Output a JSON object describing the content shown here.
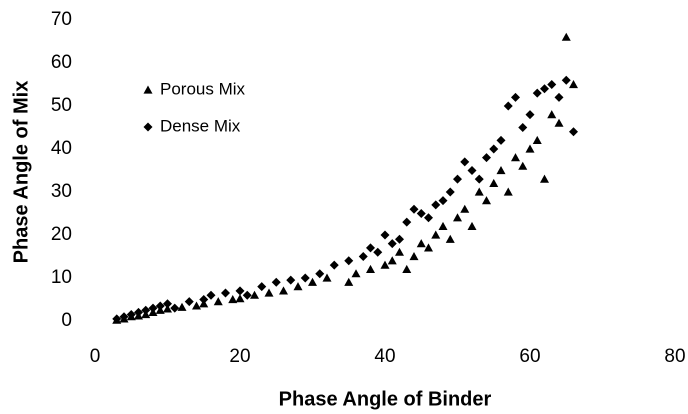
{
  "chart_data": {
    "type": "scatter",
    "xlabel": "Phase Angle of Binder",
    "ylabel": "Phase Angle of Mix",
    "xlim": [
      0,
      80
    ],
    "xticks": [
      0,
      20,
      40,
      60,
      80
    ],
    "ylim": [
      0,
      70
    ],
    "yticks": [
      0,
      10,
      20,
      30,
      40,
      50,
      60,
      70
    ],
    "grid": false,
    "legend": "upper left",
    "series": [
      {
        "name": "Porous Mix",
        "color": "#000000",
        "marker": "triangle",
        "x": [
          3,
          4,
          5,
          6,
          7,
          8,
          9,
          10,
          12,
          14,
          15,
          17,
          19,
          20,
          22,
          24,
          26,
          28,
          30,
          32,
          35,
          36,
          38,
          40,
          41,
          42,
          43,
          44,
          45,
          46,
          47,
          48,
          49,
          50,
          51,
          52,
          53,
          54,
          55,
          56,
          57,
          58,
          59,
          60,
          61,
          62,
          63,
          64,
          65,
          66
        ],
        "values": [
          0.2,
          0.5,
          1,
          1.2,
          1.5,
          2,
          2.5,
          2.8,
          3.2,
          3.5,
          4,
          4.5,
          5,
          5.2,
          6,
          6.5,
          7,
          8,
          9,
          10,
          9,
          11,
          12,
          13,
          14,
          16,
          12,
          15,
          18,
          17,
          20,
          22,
          19,
          24,
          26,
          22,
          30,
          28,
          32,
          35,
          30,
          38,
          36,
          40,
          42,
          33,
          48,
          46,
          66,
          55
        ]
      },
      {
        "name": "Dense Mix",
        "color": "#000000",
        "marker": "diamond",
        "x": [
          3,
          4,
          5,
          6,
          7,
          8,
          9,
          10,
          11,
          13,
          15,
          16,
          18,
          20,
          21,
          23,
          25,
          27,
          29,
          31,
          33,
          35,
          37,
          38,
          39,
          40,
          41,
          42,
          43,
          44,
          45,
          46,
          47,
          48,
          49,
          50,
          51,
          52,
          53,
          54,
          55,
          56,
          57,
          58,
          59,
          60,
          61,
          62,
          63,
          64,
          65,
          66
        ],
        "values": [
          0.5,
          1,
          1.5,
          2,
          2.5,
          3,
          3.5,
          4,
          3,
          4.5,
          5,
          6,
          6.5,
          7,
          6,
          8,
          9,
          9.5,
          10,
          11,
          13,
          14,
          15,
          17,
          16,
          20,
          18,
          19,
          23,
          26,
          25,
          24,
          27,
          28,
          30,
          33,
          37,
          35,
          33,
          38,
          40,
          42,
          50,
          52,
          45,
          48,
          53,
          54,
          55,
          52,
          56,
          44
        ]
      }
    ]
  }
}
